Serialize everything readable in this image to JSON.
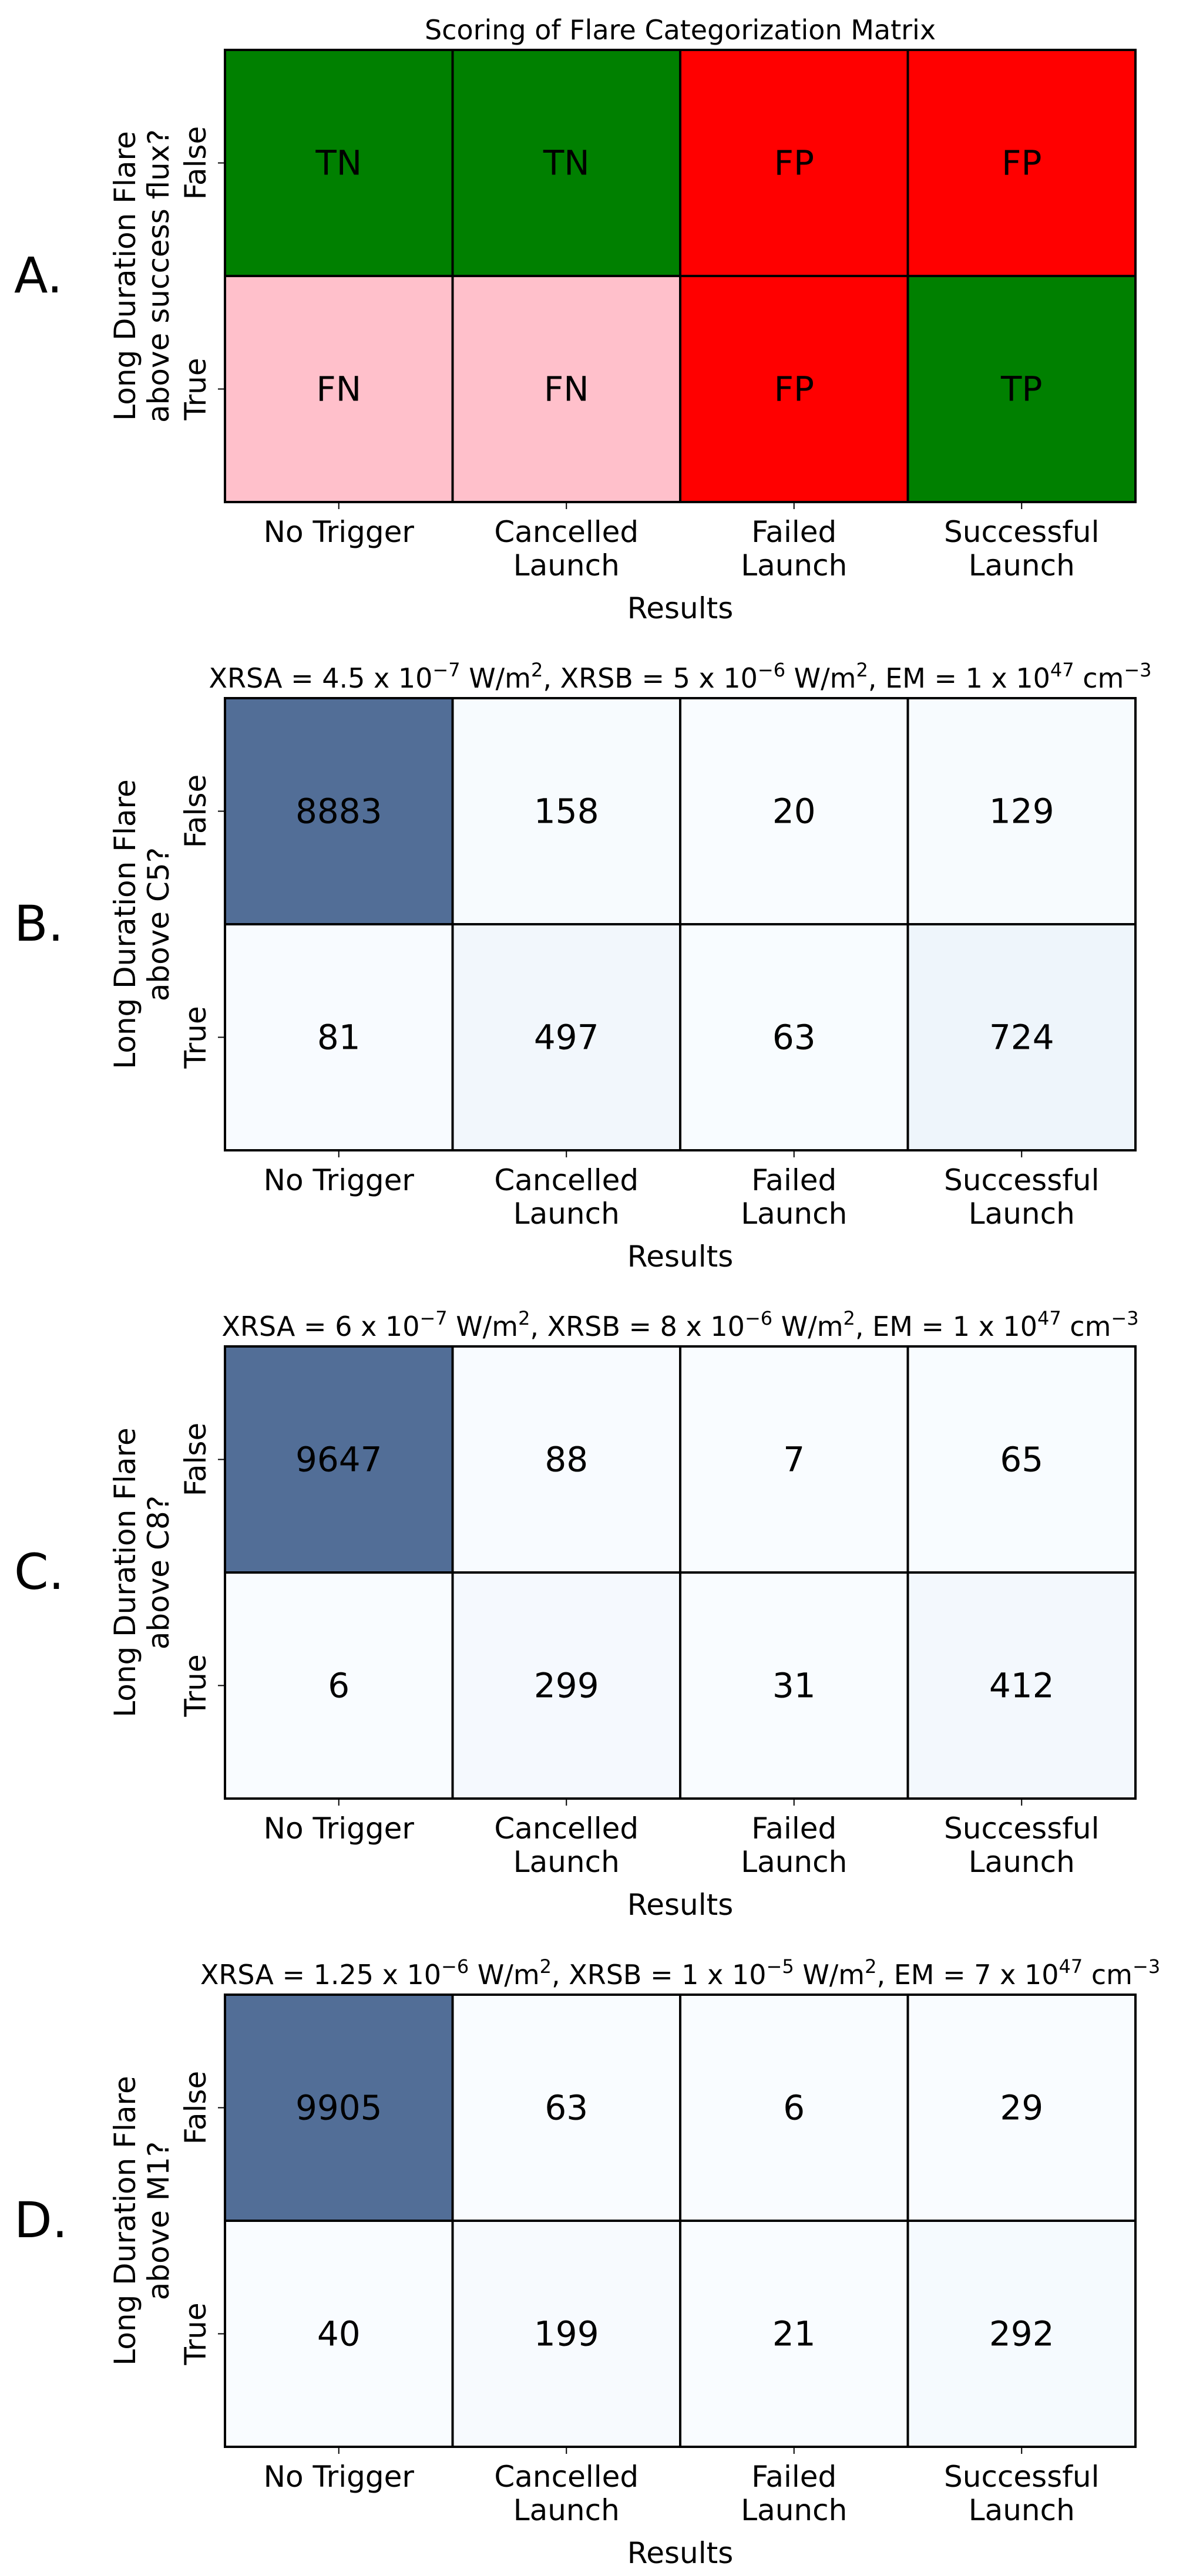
{
  "chart_data": [
    {
      "type": "heatmap",
      "panel_label": "A.",
      "title": {
        "parts": [
          {
            "t": "Scoring of Flare Categorization Matrix"
          }
        ]
      },
      "ylabel": [
        "Long Duration Flare",
        "above success flux?"
      ],
      "xlabel": "Results",
      "x_categories": [
        [
          "No Trigger"
        ],
        [
          "Cancelled",
          "Launch"
        ],
        [
          "Failed",
          "Launch"
        ],
        [
          "Successful",
          "Launch"
        ]
      ],
      "y_categories": [
        "False",
        "True"
      ],
      "cells": [
        [
          "TN",
          "TN",
          "FP",
          "FP"
        ],
        [
          "FN",
          "FN",
          "FP",
          "TP"
        ]
      ],
      "cell_colors": [
        [
          "#008000",
          "#008000",
          "#ff0000",
          "#ff0000"
        ],
        [
          "#ffc0cb",
          "#ffc0cb",
          "#ff0000",
          "#008000"
        ]
      ]
    },
    {
      "type": "heatmap",
      "panel_label": "B.",
      "title": {
        "parts": [
          {
            "t": "XRSA = 4.5 x 10"
          },
          {
            "t": "−7",
            "sup": true
          },
          {
            "t": " W/m"
          },
          {
            "t": "2",
            "sup": true
          },
          {
            "t": ", XRSB = 5 x 10"
          },
          {
            "t": "−6",
            "sup": true
          },
          {
            "t": " W/m"
          },
          {
            "t": "2",
            "sup": true
          },
          {
            "t": ", EM = 1 x 10"
          },
          {
            "t": "47",
            "sup": true
          },
          {
            "t": " cm"
          },
          {
            "t": "−3",
            "sup": true
          }
        ]
      },
      "ylabel": [
        "Long Duration Flare",
        "above C5?"
      ],
      "xlabel": "Results",
      "x_categories": [
        [
          "No Trigger"
        ],
        [
          "Cancelled",
          "Launch"
        ],
        [
          "Failed",
          "Launch"
        ],
        [
          "Successful",
          "Launch"
        ]
      ],
      "y_categories": [
        "False",
        "True"
      ],
      "values": [
        [
          8883,
          158,
          20,
          129
        ],
        [
          81,
          497,
          63,
          724
        ]
      ],
      "colormap": "Blues",
      "alpha": 0.7
    },
    {
      "type": "heatmap",
      "panel_label": "C.",
      "title": {
        "parts": [
          {
            "t": "XRSA = 6 x 10"
          },
          {
            "t": "−7",
            "sup": true
          },
          {
            "t": " W/m"
          },
          {
            "t": "2",
            "sup": true
          },
          {
            "t": ", XRSB = 8 x 10"
          },
          {
            "t": "−6",
            "sup": true
          },
          {
            "t": " W/m"
          },
          {
            "t": "2",
            "sup": true
          },
          {
            "t": ", EM = 1 x 10"
          },
          {
            "t": "47",
            "sup": true
          },
          {
            "t": " cm"
          },
          {
            "t": "−3",
            "sup": true
          }
        ]
      },
      "ylabel": [
        "Long Duration Flare",
        "above C8?"
      ],
      "xlabel": "Results",
      "x_categories": [
        [
          "No Trigger"
        ],
        [
          "Cancelled",
          "Launch"
        ],
        [
          "Failed",
          "Launch"
        ],
        [
          "Successful",
          "Launch"
        ]
      ],
      "y_categories": [
        "False",
        "True"
      ],
      "values": [
        [
          9647,
          88,
          7,
          65
        ],
        [
          6,
          299,
          31,
          412
        ]
      ],
      "colormap": "Blues",
      "alpha": 0.7
    },
    {
      "type": "heatmap",
      "panel_label": "D.",
      "title": {
        "parts": [
          {
            "t": "XRSA = 1.25 x 10"
          },
          {
            "t": "−6",
            "sup": true
          },
          {
            "t": " W/m"
          },
          {
            "t": "2",
            "sup": true
          },
          {
            "t": ", XRSB = 1 x 10"
          },
          {
            "t": "−5",
            "sup": true
          },
          {
            "t": " W/m"
          },
          {
            "t": "2",
            "sup": true
          },
          {
            "t": ", EM = 7 x 10"
          },
          {
            "t": "47",
            "sup": true
          },
          {
            "t": " cm"
          },
          {
            "t": "−3",
            "sup": true
          }
        ]
      },
      "ylabel": [
        "Long Duration Flare",
        "above M1?"
      ],
      "xlabel": "Results",
      "x_categories": [
        [
          "No Trigger"
        ],
        [
          "Cancelled",
          "Launch"
        ],
        [
          "Failed",
          "Launch"
        ],
        [
          "Successful",
          "Launch"
        ]
      ],
      "y_categories": [
        "False",
        "True"
      ],
      "values": [
        [
          9905,
          63,
          6,
          29
        ],
        [
          40,
          199,
          21,
          292
        ]
      ],
      "colormap": "Blues",
      "alpha": 0.7
    }
  ]
}
